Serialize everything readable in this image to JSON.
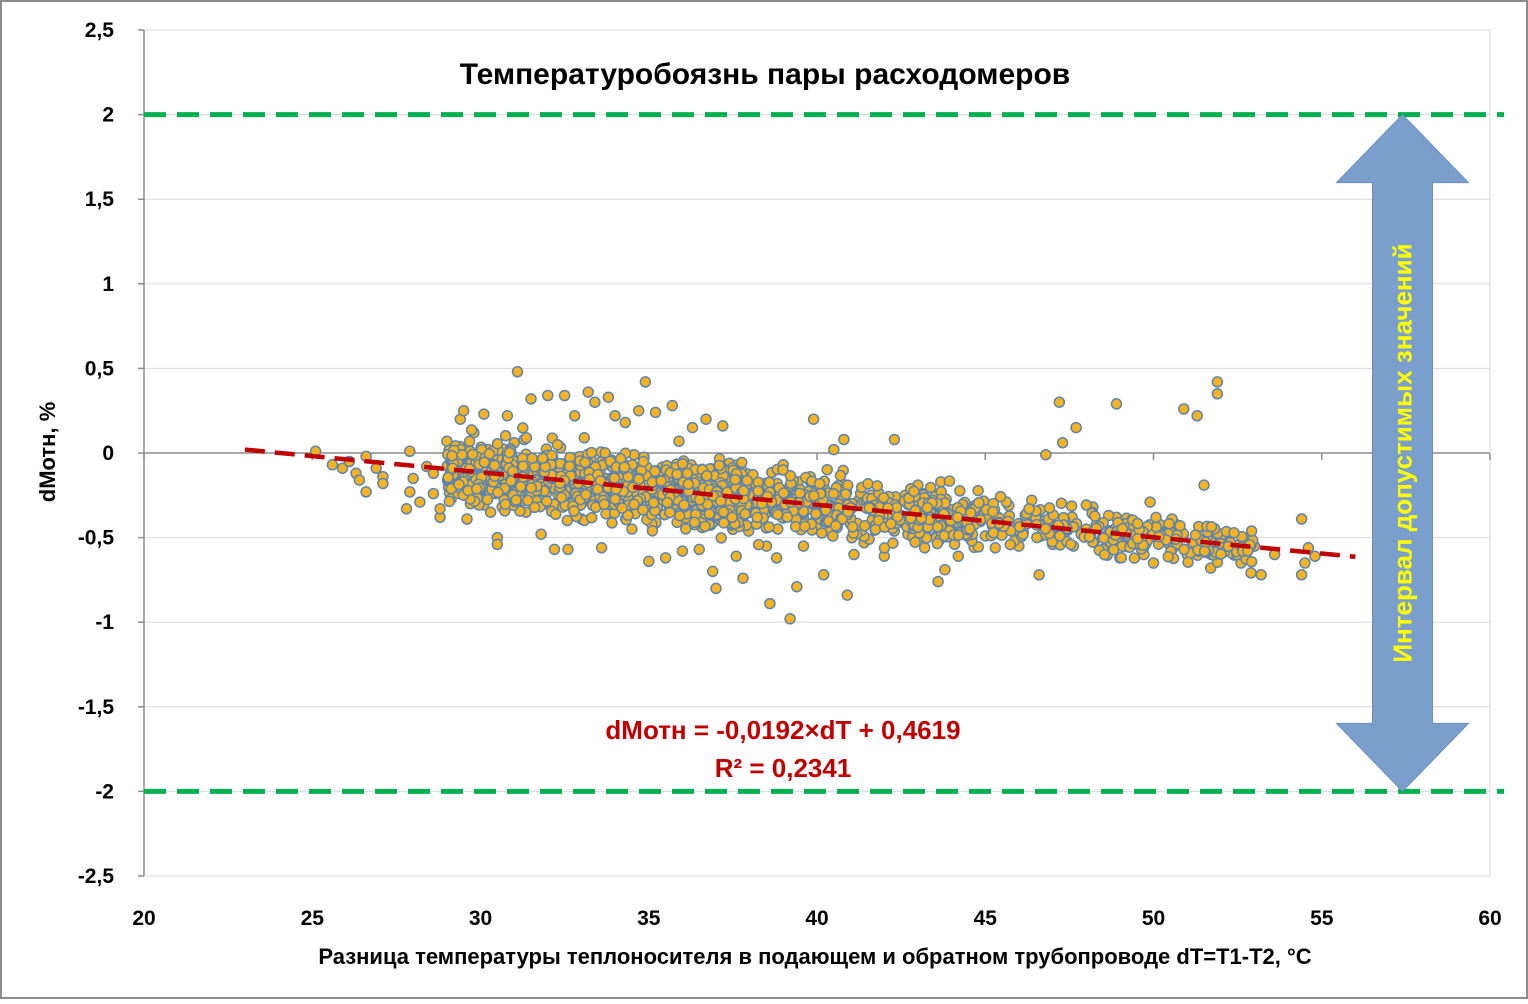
{
  "chart_data": {
    "type": "scatter",
    "title": "Температуробоязнь пары расходомеров",
    "xlabel": "Разница температуры теплоносителя в подающем и обратном трубопроводе dT=T1-T2, °C",
    "ylabel": "dMотн, %",
    "xlim": [
      20,
      60
    ],
    "ylim": [
      -2.5,
      2.5
    ],
    "x_ticks": [
      20,
      25,
      30,
      35,
      40,
      45,
      50,
      55,
      60
    ],
    "y_ticks": [
      2.5,
      2,
      1.5,
      1,
      0.5,
      0,
      -0.5,
      -1,
      -1.5,
      -2,
      -2.5
    ],
    "x_tick_labels": [
      "20",
      "25",
      "30",
      "35",
      "40",
      "45",
      "50",
      "55",
      "60"
    ],
    "y_tick_labels": [
      "2,5",
      "2",
      "1,5",
      "1",
      "0,5",
      "0",
      "-0,5",
      "-1",
      "-1,5",
      "-2",
      "-2,5"
    ],
    "grid": "horizontal",
    "trendline": {
      "slope": -0.0192,
      "intercept": 0.4619,
      "x_range": [
        23,
        56
      ],
      "equation": "dMотн = -0,0192×dT + 0,4619",
      "r2": "R² = 0,2341",
      "color": "#c00000"
    },
    "limit_lines": {
      "upper": 2,
      "lower": -2,
      "color": "#00b050"
    },
    "arrow": {
      "label": "Интервал допустимых значений",
      "y_from": -2,
      "y_to": 2,
      "x": 57.4,
      "color": "#7b9fcc",
      "text_color": "#ffff00"
    },
    "marker": {
      "fill": "#f4b31f",
      "stroke": "#5b84b1"
    },
    "series": [
      {
        "points": [
          [
            25.1,
            0.01
          ],
          [
            25.6,
            -0.07
          ],
          [
            25.9,
            -0.09
          ],
          [
            26.1,
            -0.05
          ],
          [
            26.3,
            -0.12
          ],
          [
            26.4,
            -0.16
          ],
          [
            26.6,
            -0.02
          ],
          [
            26.6,
            -0.23
          ],
          [
            26.9,
            -0.09
          ],
          [
            27.1,
            -0.14
          ],
          [
            27.1,
            -0.18
          ],
          [
            27.8,
            -0.33
          ],
          [
            27.9,
            0.01
          ],
          [
            27.9,
            -0.23
          ],
          [
            28.0,
            -0.15
          ],
          [
            28.2,
            -0.29
          ],
          [
            28.4,
            -0.08
          ],
          [
            28.6,
            -0.12
          ],
          [
            28.6,
            -0.24
          ],
          [
            28.8,
            -0.38
          ],
          [
            28.8,
            -0.33
          ],
          [
            29.0,
            0.07
          ],
          [
            29.1,
            -0.19
          ],
          [
            29.2,
            0.03
          ],
          [
            29.3,
            -0.11
          ],
          [
            29.4,
            0.2
          ],
          [
            29.5,
            0.25
          ],
          [
            29.6,
            -0.39
          ],
          [
            29.7,
            -0.3
          ],
          [
            29.8,
            0.12
          ],
          [
            30.1,
            0.23
          ],
          [
            30.2,
            -0.24
          ],
          [
            30.3,
            -0.35
          ],
          [
            30.5,
            -0.5
          ],
          [
            30.5,
            -0.54
          ],
          [
            30.8,
            0.22
          ],
          [
            31.0,
            0.06
          ],
          [
            31.1,
            0.48
          ],
          [
            31.2,
            -0.12
          ],
          [
            31.3,
            0.08
          ],
          [
            31.5,
            0.32
          ],
          [
            31.8,
            -0.48
          ],
          [
            32.0,
            0.34
          ],
          [
            32.2,
            -0.57
          ],
          [
            32.5,
            0.34
          ],
          [
            32.6,
            -0.57
          ],
          [
            32.8,
            0.22
          ],
          [
            33.0,
            -0.39
          ],
          [
            33.2,
            0.36
          ],
          [
            33.4,
            0.3
          ],
          [
            33.6,
            -0.56
          ],
          [
            33.8,
            0.33
          ],
          [
            34.0,
            0.22
          ],
          [
            34.3,
            0.18
          ],
          [
            34.5,
            -0.45
          ],
          [
            34.7,
            0.25
          ],
          [
            34.9,
            0.42
          ],
          [
            35.0,
            -0.64
          ],
          [
            35.2,
            0.24
          ],
          [
            35.5,
            -0.62
          ],
          [
            35.7,
            0.28
          ],
          [
            35.9,
            0.07
          ],
          [
            36.0,
            -0.58
          ],
          [
            36.3,
            0.15
          ],
          [
            36.5,
            -0.57
          ],
          [
            36.7,
            0.2
          ],
          [
            36.9,
            -0.7
          ],
          [
            37.0,
            -0.8
          ],
          [
            37.2,
            0.16
          ],
          [
            37.4,
            -0.06
          ],
          [
            37.6,
            -0.61
          ],
          [
            37.8,
            -0.74
          ],
          [
            38.0,
            -0.28
          ],
          [
            38.2,
            -0.42
          ],
          [
            38.5,
            -0.55
          ],
          [
            38.6,
            -0.89
          ],
          [
            38.8,
            -0.62
          ],
          [
            39.0,
            -0.3
          ],
          [
            39.2,
            -0.98
          ],
          [
            39.4,
            -0.79
          ],
          [
            39.6,
            -0.55
          ],
          [
            39.9,
            0.2
          ],
          [
            40.0,
            -0.35
          ],
          [
            40.2,
            -0.72
          ],
          [
            40.5,
            0.02
          ],
          [
            40.6,
            -0.44
          ],
          [
            40.8,
            0.08
          ],
          [
            40.9,
            -0.84
          ],
          [
            41.1,
            -0.6
          ],
          [
            41.4,
            -0.53
          ],
          [
            41.6,
            -0.25
          ],
          [
            41.8,
            -0.4
          ],
          [
            42.0,
            -0.61
          ],
          [
            42.3,
            0.08
          ],
          [
            42.5,
            -0.37
          ],
          [
            42.7,
            -0.48
          ],
          [
            43.0,
            -0.19
          ],
          [
            43.2,
            -0.56
          ],
          [
            43.4,
            -0.4
          ],
          [
            43.6,
            -0.76
          ],
          [
            43.8,
            -0.69
          ],
          [
            44.0,
            -0.36
          ],
          [
            44.2,
            -0.61
          ],
          [
            44.5,
            -0.46
          ],
          [
            44.7,
            -0.31
          ],
          [
            45.0,
            -0.49
          ],
          [
            45.3,
            -0.56
          ],
          [
            45.5,
            -0.4
          ],
          [
            45.7,
            -0.31
          ],
          [
            46.0,
            -0.55
          ],
          [
            46.3,
            -0.38
          ],
          [
            46.6,
            -0.72
          ],
          [
            46.8,
            -0.01
          ],
          [
            47.0,
            -0.54
          ],
          [
            47.2,
            0.3
          ],
          [
            47.3,
            0.06
          ],
          [
            47.6,
            -0.4
          ],
          [
            47.7,
            0.15
          ],
          [
            48.0,
            -0.45
          ],
          [
            48.2,
            -0.32
          ],
          [
            48.5,
            -0.57
          ],
          [
            48.7,
            -0.46
          ],
          [
            48.9,
            0.29
          ],
          [
            49.0,
            -0.62
          ],
          [
            49.3,
            -0.4
          ],
          [
            49.6,
            -0.55
          ],
          [
            49.9,
            -0.29
          ],
          [
            50.0,
            -0.65
          ],
          [
            50.3,
            -0.47
          ],
          [
            50.6,
            -0.41
          ],
          [
            50.9,
            0.26
          ],
          [
            51.0,
            -0.6
          ],
          [
            51.3,
            0.22
          ],
          [
            51.5,
            -0.19
          ],
          [
            51.7,
            -0.68
          ],
          [
            51.9,
            0.42
          ],
          [
            51.9,
            0.35
          ],
          [
            52.1,
            -0.5
          ],
          [
            52.4,
            -0.58
          ],
          [
            52.6,
            -0.65
          ],
          [
            53.0,
            -0.55
          ],
          [
            53.2,
            -0.72
          ],
          [
            53.6,
            -0.6
          ],
          [
            54.4,
            -0.39
          ],
          [
            54.4,
            -0.72
          ],
          [
            54.6,
            -0.56
          ],
          [
            54.8,
            -0.61
          ],
          [
            54.5,
            -0.65
          ],
          [
            52.8,
            -0.58
          ],
          [
            50.5,
            -0.46
          ]
        ]
      }
    ]
  }
}
